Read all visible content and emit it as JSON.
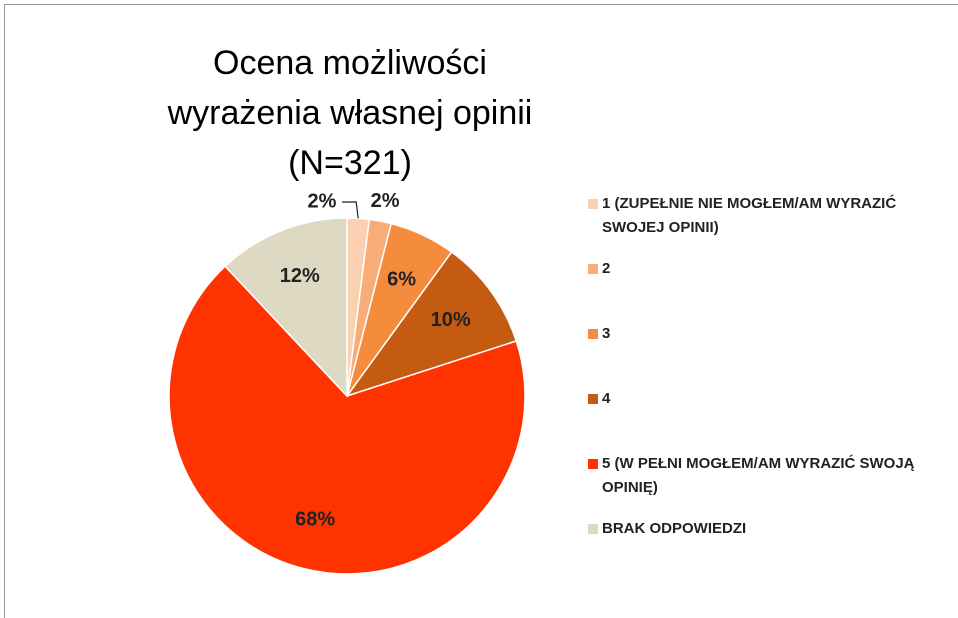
{
  "chart_data": {
    "type": "pie",
    "title": "Ocena możliwości wyrażenia własnej opinii (N=321)",
    "categories": [
      "1 (ZUPEŁNIE NIE MOGŁEM/AM WYRAZIĆ SWOJEJ OPINII)",
      "2",
      "3",
      "4",
      "5 (W PEŁNI MOGŁEM/AM WYRAZIĆ SWOJĄ OPINIĘ)",
      "BRAK ODPOWIEDZI"
    ],
    "values": [
      2,
      2,
      6,
      10,
      68,
      12
    ],
    "value_labels": [
      "2%",
      "2%",
      "6%",
      "10%",
      "68%",
      "12%"
    ],
    "colors": [
      "#fbd0b0",
      "#f8ad78",
      "#f58b3c",
      "#c55a11",
      "#ff3300",
      "#ddd9c3"
    ],
    "legend": "right"
  }
}
